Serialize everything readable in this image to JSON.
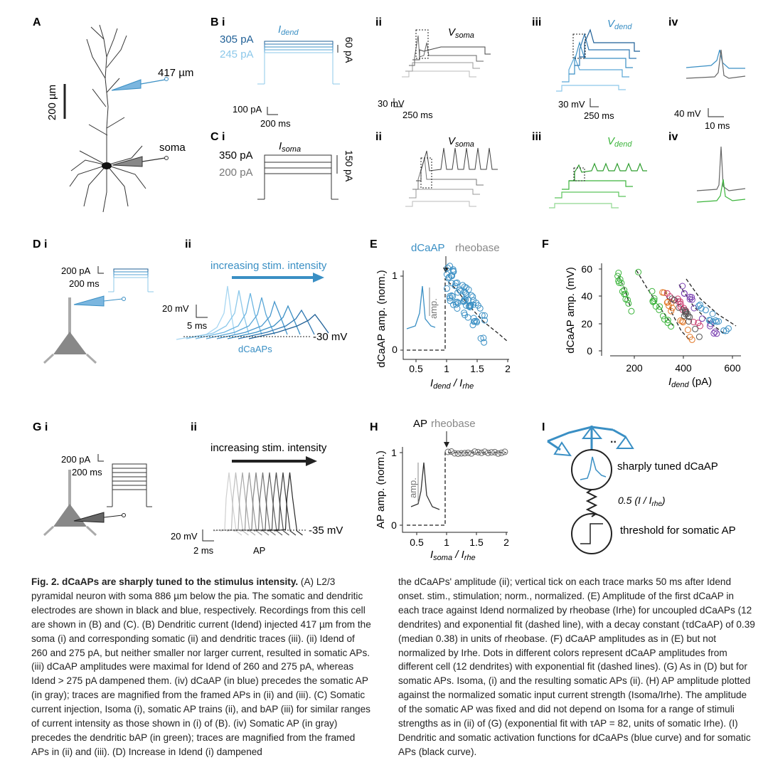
{
  "panels": {
    "A": {
      "label": "A",
      "dist": "417 µm",
      "soma": "soma",
      "scale": "200 µm"
    },
    "Bi": {
      "label": "B i",
      "i1": "305 pA",
      "i2": "245 pA",
      "idend": "I",
      "idend_sub": "dend",
      "step": "60 pA",
      "scale_pa": "100 pA",
      "scale_ms": "200 ms"
    },
    "Bii": {
      "label": "ii",
      "vsoma": "V",
      "vsoma_sub": "soma",
      "scale_mv": "30 mV",
      "scale_ms": "250 ms"
    },
    "Biii": {
      "label": "iii",
      "vdend": "V",
      "vdend_sub": "dend",
      "scale_mv": "30 mV",
      "scale_ms": "250 ms"
    },
    "Biv": {
      "label": "iv",
      "scale_mv": "40 mV",
      "scale_ms": "10 ms"
    },
    "Ci": {
      "label": "C i",
      "i1": "350 pA",
      "i2": "200 pA",
      "isoma": "I",
      "isoma_sub": "soma",
      "step": "150 pA"
    },
    "Cii": {
      "label": "ii",
      "vsoma": "V",
      "vsoma_sub": "soma"
    },
    "Ciii": {
      "label": "iii",
      "vdend": "V",
      "vdend_sub": "dend"
    },
    "Civ": {
      "label": "iv"
    },
    "Di": {
      "label": "D i",
      "scale_pa": "200 pA",
      "scale_ms": "200 ms"
    },
    "Dii": {
      "label": "ii",
      "title": "increasing stim. intensity",
      "scale_mv": "20 mV",
      "scale_ms": "5 ms",
      "thresh": "-30 mV",
      "traces": "dCaAPs"
    },
    "E": {
      "label": "E",
      "dcaap": "dCaAP",
      "rheobase": "rheobase",
      "ylabel": "dCaAP amp. (norm.)",
      "xlabel": "I",
      "xlabel_sub1": "dend",
      "xlabel_mid": " / I",
      "xlabel_sub2": "rhe",
      "amp": "amp.",
      "yticks": [
        "0",
        "1"
      ],
      "xticks": [
        "0.5",
        "1",
        "1.5",
        "2"
      ]
    },
    "F": {
      "label": "F",
      "ylabel": "dCaAP amp. (mV)",
      "xlabel": "I",
      "xlabel_sub": "dend",
      "xunit": " (pA)",
      "yticks": [
        "0",
        "20",
        "40",
        "60"
      ],
      "xticks": [
        "200",
        "400",
        "600"
      ]
    },
    "Gi": {
      "label": "G i",
      "scale_pa": "200 pA",
      "scale_ms": "200 ms"
    },
    "Gii": {
      "label": "ii",
      "title": "increasing stim. intensity",
      "scale_mv": "20 mV",
      "scale_ms": "2 ms",
      "thresh": "-35 mV",
      "traces": "AP"
    },
    "H": {
      "label": "H",
      "ap": "AP",
      "rheobase": "rheobase",
      "ylabel": "AP amp. (norm.)",
      "xlabel": "I",
      "xlabel_sub1": "soma",
      "xlabel_mid": " / I",
      "xlabel_sub2": "rhe",
      "amp": "amp.",
      "yticks": [
        "0",
        "1"
      ],
      "xticks": [
        "0.5",
        "1",
        "1.5",
        "2"
      ]
    },
    "I": {
      "label": "I",
      "top": "sharply tuned dCaAP",
      "mid": "0.5 (I / I",
      "mid_sub": "rhe",
      "mid_end": ")",
      "bottom": "threshold for somatic AP"
    }
  },
  "caption": {
    "left_title": "Fig. 2. dCaAPs are sharply tuned to the stimulus intensity.",
    "left_body": " (A) L2/3 pyramidal neuron with soma 886 µm below the pia. The somatic and dendritic electrodes are shown in black and blue, respectively. Recordings from this cell are shown in (B) and (C). (B) Dendritic current (Idend) injected 417 µm from the soma (i) and corresponding somatic (ii) and dendritic traces (iii). (ii) Idend of 260 and 275 pA, but neither smaller nor larger current, resulted in somatic APs. (iii) dCaAP amplitudes were maximal for Idend of 260 and 275 pA, whereas Idend > 275 pA dampened them. (iv) dCaAP (in blue) precedes the somatic AP (in gray); traces are magnified from the framed APs in (ii) and (iii). (C) Somatic current injection, Isoma (i), somatic AP trains (ii), and bAP (iii) for similar ranges of current intensity as those shown in (i) of (B). (iv) Somatic AP (in gray) precedes the dendritic bAP (in green); traces are magnified from the framed APs in (ii) and (iii). (D) Increase in Idend (i) dampened",
    "right_body": "the dCaAPs' amplitude (ii); vertical tick on each trace marks 50 ms after Idend onset. stim., stimulation; norm., normalized. (E) Amplitude of the first dCaAP in each trace against Idend normalized by rheobase (Irhe) for uncoupled dCaAPs (12 dendrites) and exponential fit (dashed line), with a decay constant (τdCaAP) of 0.39 (median 0.38) in units of rheobase. (F) dCaAP amplitudes as in (E) but not normalized by Irhe. Dots in different colors represent dCaAP amplitudes from different cell (12 dendrites) with exponential fit (dashed lines). (G) As in (D) but for somatic APs. Isoma, (i) and the resulting somatic APs (ii). (H) AP amplitude plotted against the normalized somatic input current strength (Isoma/Irhe). The amplitude of the somatic AP was fixed and did not depend on Isoma for a range of stimuli strengths as in (ii) of (G) (exponential fit with τAP = 82, units of somatic Irhe). (I) Dendritic and somatic activation functions for dCaAPs (blue curve) and for somatic APs (black curve)."
  },
  "colors": {
    "blue": "#3a8fc4",
    "lightblue": "#8cc8ea",
    "darkblue": "#1f5f96",
    "gray": "#8a8a8a",
    "green": "#3db53d",
    "black": "#222222"
  }
}
